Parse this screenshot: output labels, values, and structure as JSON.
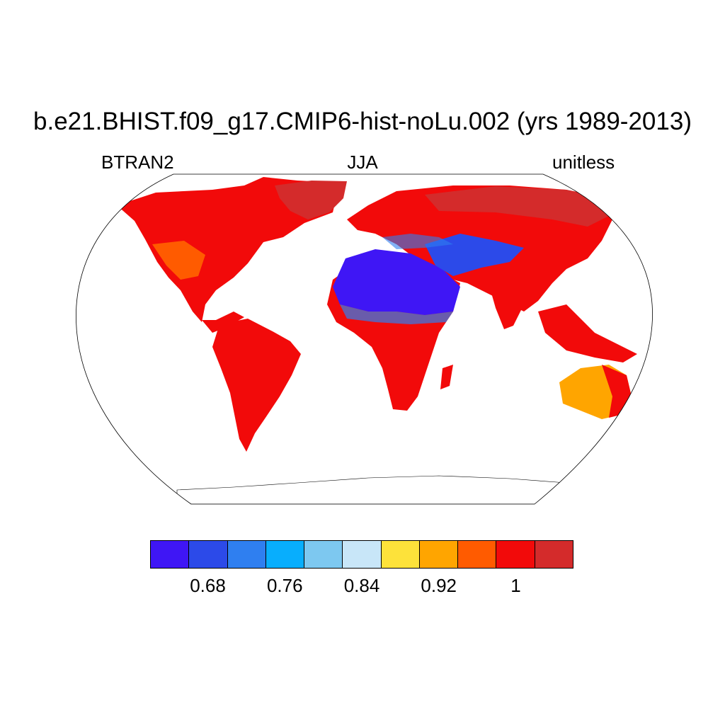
{
  "title": "b.e21.BHIST.f09_g17.CMIP6-hist-noLu.002 (yrs 1989-2013)",
  "left_string": "BTRAN2",
  "center_string": "JJA",
  "right_string": "unitless",
  "projection": "robinson",
  "colorbar": {
    "colors": [
      "#3f16f5",
      "#2c4ae9",
      "#2f7ff0",
      "#08aefd",
      "#7dc8f0",
      "#c8e6f8",
      "#fde23a",
      "#ffa500",
      "#ff5b00",
      "#f20a0a",
      "#d42b2b"
    ],
    "labels": [
      "0.68",
      "0.76",
      "0.84",
      "0.92",
      "1"
    ]
  }
}
